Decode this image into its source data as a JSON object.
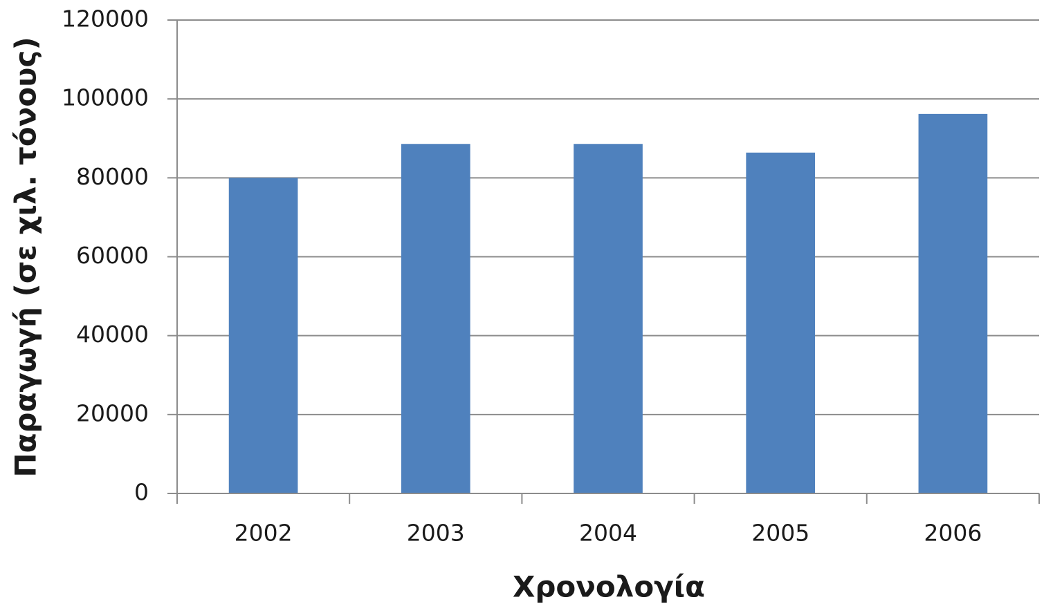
{
  "chart_data": {
    "type": "bar",
    "x_label": "Χρονολογία",
    "y_label": "Παραγωγή (σε χιλ. τόνους)",
    "categories": [
      "2002",
      "2003",
      "2004",
      "2005",
      "2006"
    ],
    "values": [
      80000,
      88600,
      88600,
      86400,
      96200
    ],
    "color": "#4f81bd",
    "ylim": [
      0,
      120000
    ],
    "yticks": [
      0,
      20000,
      40000,
      60000,
      80000,
      100000,
      120000
    ],
    "grid": true
  }
}
